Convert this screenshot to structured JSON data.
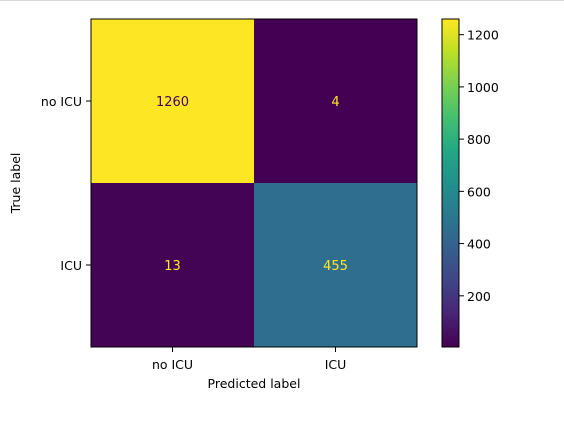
{
  "chart_data": {
    "type": "heatmap",
    "title": "",
    "xlabel": "Predicted label",
    "ylabel": "True label",
    "x_categories": [
      "no ICU",
      "ICU"
    ],
    "y_categories": [
      "no ICU",
      "ICU"
    ],
    "values": [
      [
        1260,
        4
      ],
      [
        13,
        455
      ]
    ],
    "colormap": "viridis",
    "colorbar": {
      "range": [
        4,
        1260
      ],
      "ticks": [
        200,
        400,
        600,
        800,
        1000,
        1200
      ]
    },
    "text_colors": {
      "on_light": "#440154",
      "on_dark": "#fde725"
    },
    "grid": false
  }
}
